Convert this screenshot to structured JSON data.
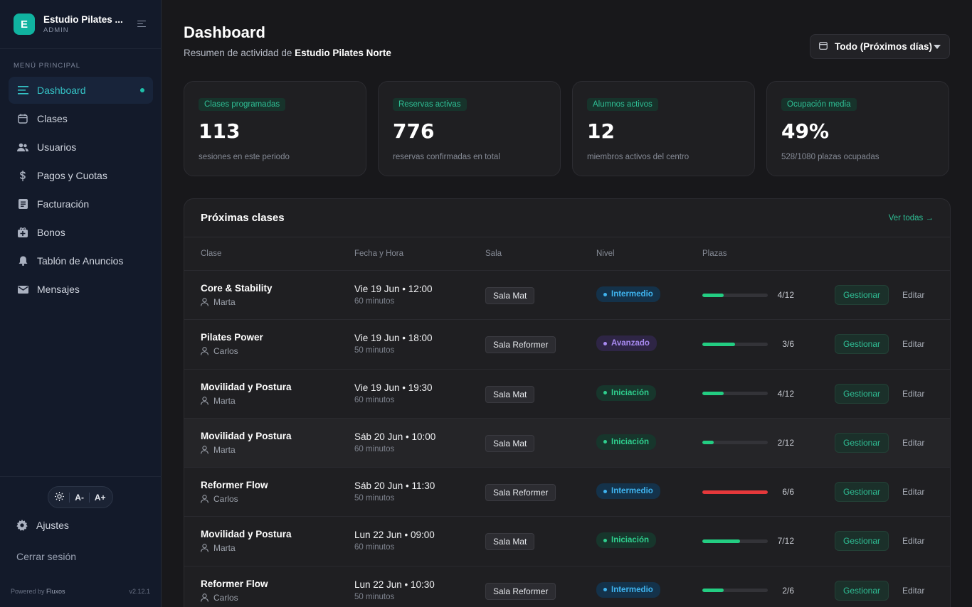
{
  "brand": {
    "initial": "E",
    "name": "Estudio Pilates ...",
    "role": "ADMIN"
  },
  "sidebar": {
    "section": "MENÚ PRINCIPAL",
    "items": [
      {
        "label": "Dashboard",
        "icon": "list-icon"
      },
      {
        "label": "Clases",
        "icon": "calendar-icon"
      },
      {
        "label": "Usuarios",
        "icon": "users-icon"
      },
      {
        "label": "Pagos y Cuotas",
        "icon": "dollar-icon"
      },
      {
        "label": "Facturación",
        "icon": "invoice-icon"
      },
      {
        "label": "Bonos",
        "icon": "gift-icon"
      },
      {
        "label": "Tablón de Anuncios",
        "icon": "bell-icon"
      },
      {
        "label": "Mensajes",
        "icon": "mail-icon"
      }
    ],
    "a11y": {
      "decrease": "A-",
      "increase": "A+"
    },
    "settings": "Ajustes",
    "logout": "Cerrar sesión",
    "powered_prefix": "Powered by",
    "powered_brand": "Fluxos",
    "version": "v2.12.1"
  },
  "header": {
    "title": "Dashboard",
    "subtitle_prefix": "Resumen de actividad de",
    "subtitle_studio": "Estudio Pilates Norte",
    "period": "Todo (Próximos días)"
  },
  "stats": [
    {
      "badge": "Clases programadas",
      "value": "113",
      "desc": "sesiones en este periodo"
    },
    {
      "badge": "Reservas activas",
      "value": "776",
      "desc": "reservas confirmadas en total"
    },
    {
      "badge": "Alumnos activos",
      "value": "12",
      "desc": "miembros activos del centro"
    },
    {
      "badge": "Ocupación media",
      "value": "49%",
      "desc": "528/1080 plazas ocupadas"
    }
  ],
  "classes": {
    "title": "Próximas clases",
    "link": "Ver todas →",
    "columns": [
      "Clase",
      "Fecha y Hora",
      "Sala",
      "Nivel",
      "Plazas"
    ],
    "manage_label": "Gestionar",
    "edit_label": "Editar",
    "rows": [
      {
        "name": "Core & Stability",
        "instructor": "Marta",
        "date": "Vie 19 Jun • 12:00",
        "duration": "60 minutos",
        "room": "Sala Mat",
        "level": "Intermedio",
        "places": "4/12",
        "occupancy": 0.33
      },
      {
        "name": "Pilates Power",
        "instructor": "Carlos",
        "date": "Vie 19 Jun • 18:00",
        "duration": "50 minutos",
        "room": "Sala Reformer",
        "level": "Avanzado",
        "places": "3/6",
        "occupancy": 0.5
      },
      {
        "name": "Movilidad y Postura",
        "instructor": "Marta",
        "date": "Vie 19 Jun • 19:30",
        "duration": "60 minutos",
        "room": "Sala Mat",
        "level": "Iniciación",
        "places": "4/12",
        "occupancy": 0.33
      },
      {
        "name": "Movilidad y Postura",
        "instructor": "Marta",
        "date": "Sáb 20 Jun • 10:00",
        "duration": "60 minutos",
        "room": "Sala Mat",
        "level": "Iniciación",
        "places": "2/12",
        "occupancy": 0.17
      },
      {
        "name": "Reformer Flow",
        "instructor": "Carlos",
        "date": "Sáb 20 Jun • 11:30",
        "duration": "50 minutos",
        "room": "Sala Reformer",
        "level": "Intermedio",
        "places": "6/6",
        "occupancy": 1.0
      },
      {
        "name": "Movilidad y Postura",
        "instructor": "Marta",
        "date": "Lun 22 Jun • 09:00",
        "duration": "60 minutos",
        "room": "Sala Mat",
        "level": "Iniciación",
        "places": "7/12",
        "occupancy": 0.58
      },
      {
        "name": "Reformer Flow",
        "instructor": "Carlos",
        "date": "Lun 22 Jun • 10:30",
        "duration": "50 minutos",
        "room": "Sala Reformer",
        "level": "Intermedio",
        "places": "2/6",
        "occupancy": 0.33
      }
    ]
  },
  "colors": {
    "accent": "#1fbfa9",
    "progress": "#23cd82",
    "full": "#e5383b"
  }
}
